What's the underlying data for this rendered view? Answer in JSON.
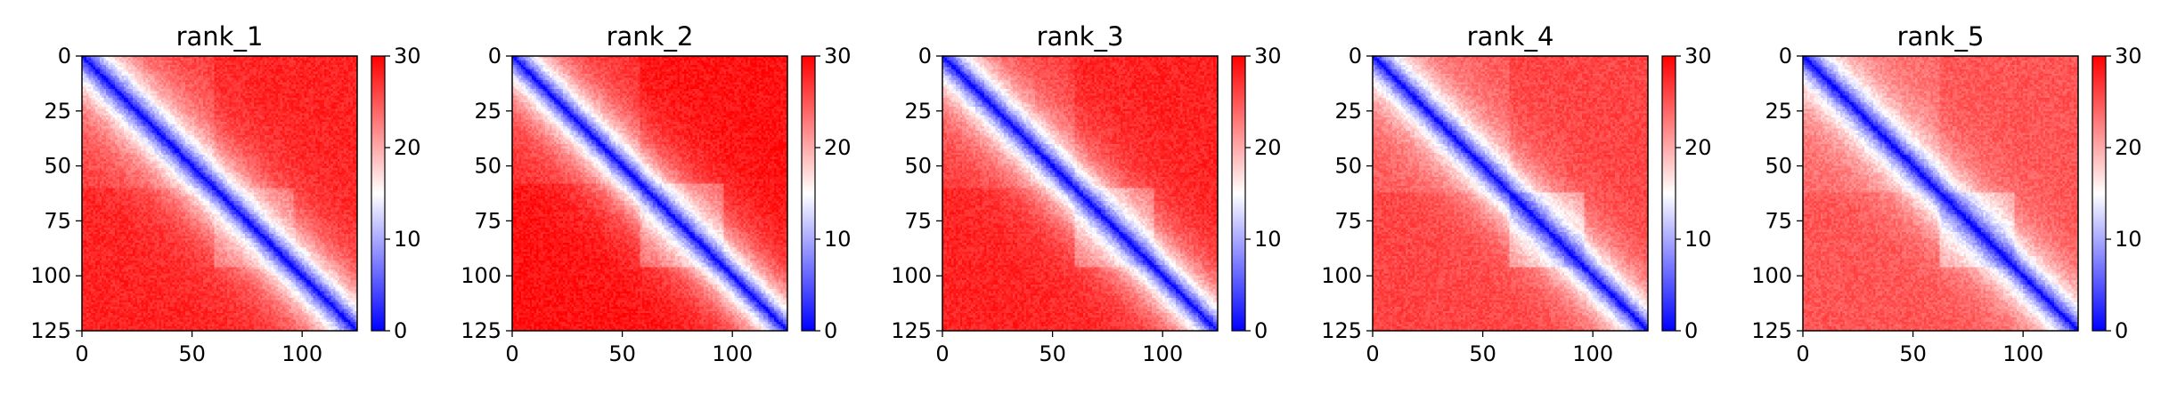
{
  "chart_data": [
    {
      "type": "heatmap",
      "title": "rank_1",
      "colormap": [
        "#0000ff",
        "#ffffff",
        "#ff0000"
      ],
      "clim": [
        0,
        30
      ],
      "x_range": [
        0,
        125
      ],
      "y_range": [
        0,
        125
      ],
      "x_ticks": [
        "0",
        "50",
        "100"
      ],
      "y_ticks": [
        "0",
        "25",
        "50",
        "75",
        "100",
        "125"
      ],
      "colorbar_ticks": [
        "0",
        "10",
        "20",
        "30"
      ],
      "block_boundaries": [
        60,
        95
      ],
      "diagonal_width": 14,
      "sub_diagonal": {
        "start": 60,
        "end": 95,
        "width": 11
      },
      "off_diag_max": 28
    },
    {
      "type": "heatmap",
      "title": "rank_2",
      "colormap": [
        "#0000ff",
        "#ffffff",
        "#ff0000"
      ],
      "clim": [
        0,
        30
      ],
      "x_range": [
        0,
        125
      ],
      "y_range": [
        0,
        125
      ],
      "x_ticks": [
        "0",
        "50",
        "100"
      ],
      "y_ticks": [
        "0",
        "25",
        "50",
        "75",
        "100",
        "125"
      ],
      "colorbar_ticks": [
        "0",
        "10",
        "20",
        "30"
      ],
      "block_boundaries": [
        58,
        95
      ],
      "diagonal_width": 13,
      "sub_diagonal": {
        "start": 58,
        "end": 95,
        "width": 12
      },
      "off_diag_max": 29
    },
    {
      "type": "heatmap",
      "title": "rank_3",
      "colormap": [
        "#0000ff",
        "#ffffff",
        "#ff0000"
      ],
      "clim": [
        0,
        30
      ],
      "x_range": [
        0,
        125
      ],
      "y_range": [
        0,
        125
      ],
      "x_ticks": [
        "0",
        "50",
        "100"
      ],
      "y_ticks": [
        "0",
        "25",
        "50",
        "75",
        "100",
        "125"
      ],
      "colorbar_ticks": [
        "0",
        "10",
        "20",
        "30"
      ],
      "block_boundaries": [
        60,
        95
      ],
      "diagonal_width": 13,
      "sub_diagonal": {
        "start": 60,
        "end": 95,
        "width": 12
      },
      "off_diag_max": 28
    },
    {
      "type": "heatmap",
      "title": "rank_4",
      "colormap": [
        "#0000ff",
        "#ffffff",
        "#ff0000"
      ],
      "clim": [
        0,
        30
      ],
      "x_range": [
        0,
        125
      ],
      "y_range": [
        0,
        125
      ],
      "x_ticks": [
        "0",
        "50",
        "100"
      ],
      "y_ticks": [
        "0",
        "25",
        "50",
        "75",
        "100",
        "125"
      ],
      "colorbar_ticks": [
        "0",
        "10",
        "20",
        "30"
      ],
      "block_boundaries": [
        62,
        95
      ],
      "diagonal_width": 12,
      "sub_diagonal": {
        "start": 62,
        "end": 95,
        "width": 12
      },
      "off_diag_max": 26
    },
    {
      "type": "heatmap",
      "title": "rank_5",
      "colormap": [
        "#0000ff",
        "#ffffff",
        "#ff0000"
      ],
      "clim": [
        0,
        30
      ],
      "x_range": [
        0,
        125
      ],
      "y_range": [
        0,
        125
      ],
      "x_ticks": [
        "0",
        "50",
        "100"
      ],
      "y_ticks": [
        "0",
        "25",
        "50",
        "75",
        "100",
        "125"
      ],
      "colorbar_ticks": [
        "0",
        "10",
        "20",
        "30"
      ],
      "block_boundaries": [
        62,
        95
      ],
      "diagonal_width": 12,
      "sub_diagonal": {
        "start": 62,
        "end": 95,
        "width": 12
      },
      "off_diag_max": 25
    }
  ]
}
